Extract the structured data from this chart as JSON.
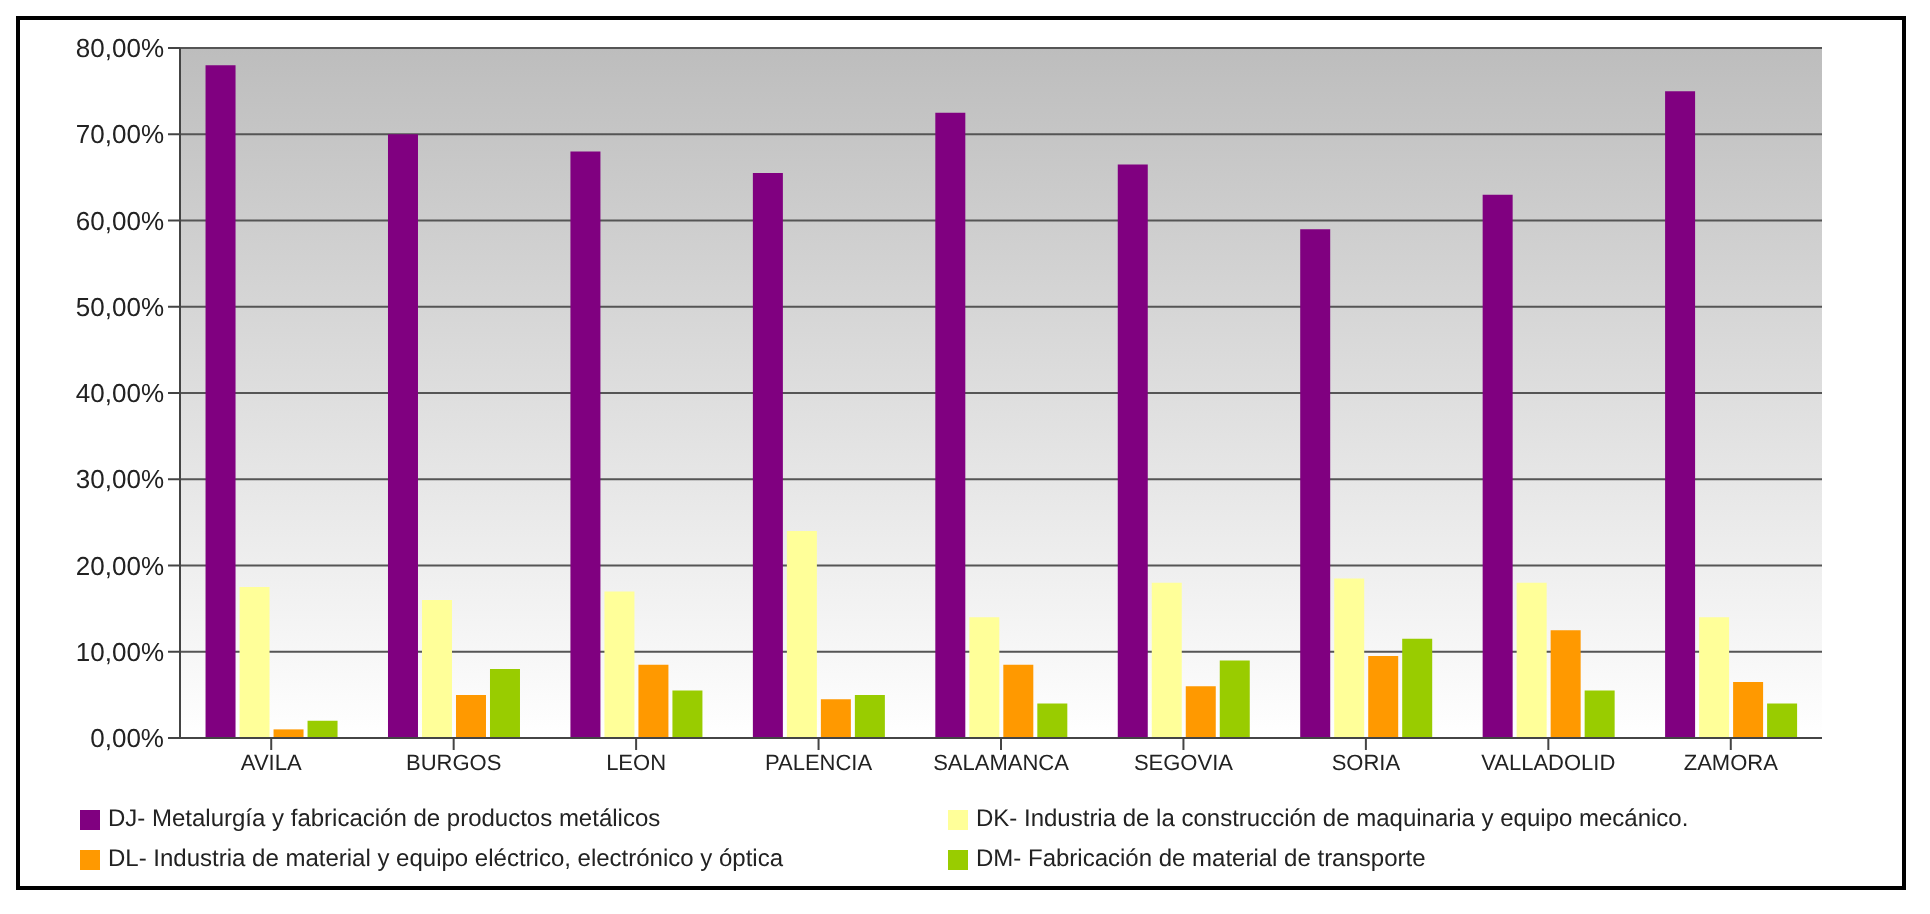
{
  "chart_data": {
    "type": "bar",
    "categories": [
      "AVILA",
      "BURGOS",
      "LEON",
      "PALENCIA",
      "SALAMANCA",
      "SEGOVIA",
      "SORIA",
      "VALLADOLID",
      "ZAMORA"
    ],
    "series": [
      {
        "name": "DJ- Metalurgía y fabricación de productos metálicos",
        "color": "#800080",
        "values": [
          78,
          70,
          68,
          65.5,
          72.5,
          66.5,
          59,
          63,
          75
        ]
      },
      {
        "name": "DK- Industria de la construcción de maquinaria y equipo mecánico.",
        "color": "#ffff99",
        "values": [
          17.5,
          16,
          17,
          24,
          14,
          18,
          18.5,
          18,
          14
        ]
      },
      {
        "name": "DL- Industria de material y equipo eléctrico, electrónico y óptica",
        "color": "#ff9900",
        "values": [
          1,
          5,
          8.5,
          4.5,
          8.5,
          6,
          9.5,
          12.5,
          6.5
        ]
      },
      {
        "name": "DM- Fabricación de material de transporte",
        "color": "#99cc00",
        "values": [
          2,
          8,
          5.5,
          5,
          4,
          9,
          11.5,
          5.5,
          4
        ]
      }
    ],
    "ylim": [
      0,
      80
    ],
    "yticks": [
      {
        "value": 0,
        "label": "0,00%"
      },
      {
        "value": 10,
        "label": "10,00%"
      },
      {
        "value": 20,
        "label": "20,00%"
      },
      {
        "value": 30,
        "label": "30,00%"
      },
      {
        "value": 40,
        "label": "40,00%"
      },
      {
        "value": 50,
        "label": "50,00%"
      },
      {
        "value": 60,
        "label": "60,00%"
      },
      {
        "value": 70,
        "label": "70,00%"
      },
      {
        "value": 80,
        "label": "80,00%"
      }
    ],
    "grid": "y",
    "legend": "bottom"
  }
}
